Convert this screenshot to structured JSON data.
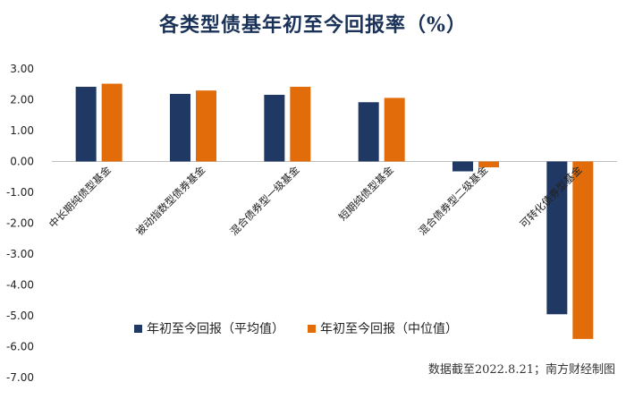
{
  "chart_data": {
    "type": "bar",
    "title": "各类型债基年初至今回报率（%）",
    "categories": [
      "中长期纯债型基金",
      "被动指数型债券基金",
      "混合债券型一级基金",
      "短期纯债型基金",
      "混合债券型二级基金",
      "可转化债券型基金"
    ],
    "series": [
      {
        "name": "年初至今回报（平均值）",
        "color": "#1f3864",
        "values": [
          2.42,
          2.19,
          2.16,
          1.92,
          -0.32,
          -4.95
        ]
      },
      {
        "name": "年初至今回报（中位值）",
        "color": "#e36c0a",
        "values": [
          2.52,
          2.3,
          2.42,
          2.06,
          -0.19,
          -5.75
        ]
      }
    ],
    "y_ticks": [
      "3.00",
      "2.00",
      "1.00",
      "0.00",
      "-1.00",
      "-2.00",
      "-3.00",
      "-4.00",
      "-5.00",
      "-6.00",
      "-7.00"
    ],
    "ylim": [
      -7,
      3
    ],
    "xlabel": "",
    "ylabel": "",
    "grid": false,
    "legend_position": "bottom-center inside plot"
  },
  "source_note": "数据截至2022.8.21；南方财经制图"
}
